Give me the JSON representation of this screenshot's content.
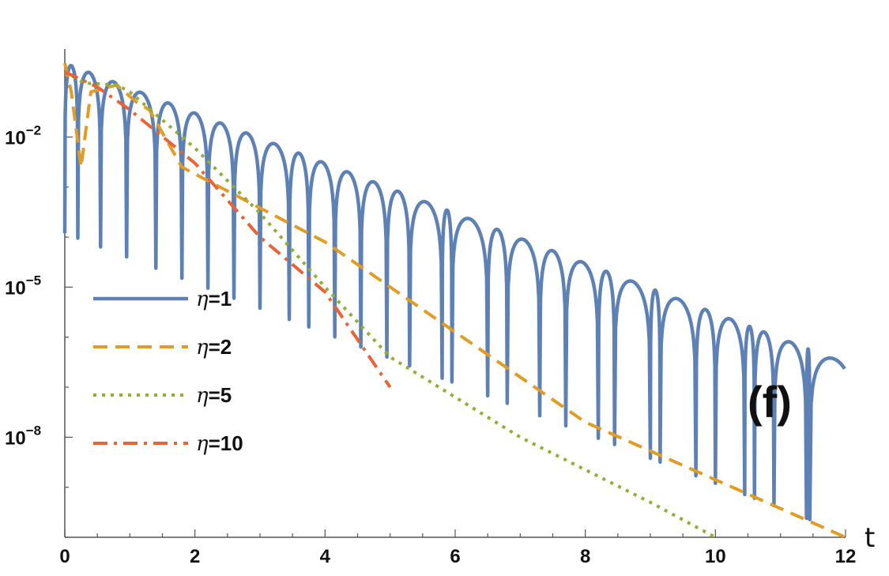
{
  "chart_data": {
    "type": "line",
    "title": "",
    "xlabel": "t",
    "ylabel": "",
    "panel_label": "(f)",
    "y_scale": "log",
    "xlim": [
      0,
      12
    ],
    "ylim": [
      1e-10,
      0.4
    ],
    "x_ticks": [
      0,
      2,
      4,
      6,
      8,
      10,
      12
    ],
    "x_tick_labels": [
      "0",
      "2",
      "4",
      "6",
      "8",
      "10",
      "12"
    ],
    "y_ticks": [
      0.01,
      1e-05,
      1e-08
    ],
    "y_tick_labels": [
      {
        "base": "10",
        "exp": "−2"
      },
      {
        "base": "10",
        "exp": "−5"
      },
      {
        "base": "10",
        "exp": "−8"
      }
    ],
    "grid": false,
    "legend_position": "left",
    "series": [
      {
        "name": "η=1",
        "name_symbol": "η",
        "name_value": "=1",
        "color": "#5e81b5",
        "dash": "solid",
        "decay_per_unit_t": 0.5,
        "start_value": 0.3,
        "x_end": 12,
        "dips_t": [
          0.2,
          0.55,
          0.95,
          1.4,
          1.8,
          2.2,
          2.6,
          3.0,
          3.45,
          3.75,
          4.15,
          4.55,
          4.95,
          5.3,
          5.8,
          5.95,
          6.5,
          6.8,
          7.3,
          7.7,
          8.2,
          8.45,
          9.0,
          9.15,
          9.7,
          10.0,
          10.45,
          10.6,
          10.9,
          11.4,
          11.45
        ]
      },
      {
        "name": "η=2",
        "name_symbol": "η",
        "name_value": "=2",
        "color": "#e19c24",
        "dash": "dashed",
        "points": [
          [
            0.0,
            0.3
          ],
          [
            0.1,
            0.08
          ],
          [
            0.25,
            0.0025
          ],
          [
            0.4,
            0.08
          ],
          [
            0.8,
            0.11
          ],
          [
            1.1,
            0.05
          ],
          [
            1.3,
            0.035
          ],
          [
            1.8,
            0.0025
          ],
          [
            4.0,
            8e-05
          ],
          [
            8.0,
            2e-08
          ],
          [
            12.0,
            8e-12
          ]
        ]
      },
      {
        "name": "η=5",
        "name_symbol": "η",
        "name_value": "=5",
        "color": "#8fb032",
        "dash": "dotted",
        "points": [
          [
            0.0,
            0.2
          ],
          [
            0.3,
            0.12
          ],
          [
            0.8,
            0.11
          ],
          [
            1.0,
            0.08
          ],
          [
            2.0,
            0.006
          ],
          [
            3.0,
            0.0003
          ],
          [
            4.0,
            1e-05
          ],
          [
            5.0,
            4e-07
          ],
          [
            7.0,
            1e-08
          ],
          [
            9.0,
            5e-10
          ],
          [
            10.0,
            1e-10
          ]
        ]
      },
      {
        "name": "η=10",
        "name_symbol": "η",
        "name_value": "=10",
        "color": "#eb6235",
        "dash": "dashdot",
        "points": [
          [
            0.0,
            0.2
          ],
          [
            0.5,
            0.1
          ],
          [
            1.0,
            0.035
          ],
          [
            2.0,
            0.003
          ],
          [
            3.0,
            0.0001
          ],
          [
            4.0,
            8e-06
          ],
          [
            5.0,
            1e-07
          ]
        ]
      }
    ]
  }
}
